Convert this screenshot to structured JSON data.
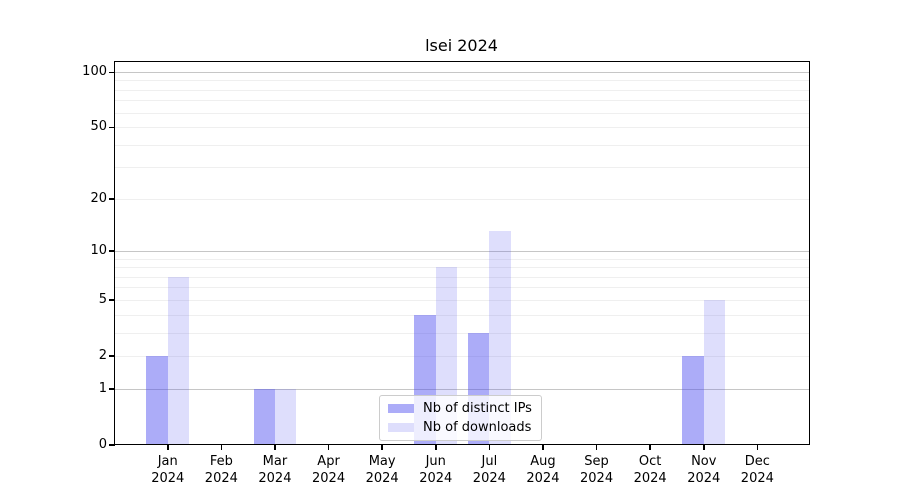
{
  "title": "lsei 2024",
  "chart_data": {
    "type": "bar",
    "title": "lsei 2024",
    "categories": [
      "Jan",
      "Feb",
      "Mar",
      "Apr",
      "May",
      "Jun",
      "Jul",
      "Aug",
      "Sep",
      "Oct",
      "Nov",
      "Dec"
    ],
    "year_label": "2024",
    "series": [
      {
        "name": "Nb of distinct IPs",
        "values": [
          2,
          0,
          1,
          0,
          0,
          4,
          3,
          0,
          0,
          0,
          2,
          0
        ],
        "fill": "rgba(70,70,240,0.45)",
        "legend_color": "#acacf8"
      },
      {
        "name": "Nb of downloads",
        "values": [
          7,
          0,
          1,
          0,
          0,
          8,
          13,
          0,
          0,
          0,
          5,
          0
        ],
        "fill": "rgba(70,70,240,0.18)",
        "legend_color": "#dedefc"
      }
    ],
    "xlabel": "",
    "ylabel": "",
    "y_scale": "log1p",
    "ylim": [
      0,
      100
    ],
    "y_ticks": [
      0,
      1,
      2,
      5,
      10,
      20,
      50,
      100
    ],
    "y_gridlines_major": [
      1,
      10,
      100
    ],
    "y_gridlines_minor": [
      2,
      3,
      4,
      5,
      6,
      7,
      8,
      9,
      20,
      30,
      40,
      50,
      60,
      70,
      80,
      90
    ],
    "grid_major_color": "#c6c6c6",
    "grid_minor_color": "#efefef",
    "axis_color": "#000000",
    "legend_position": "lower center"
  }
}
